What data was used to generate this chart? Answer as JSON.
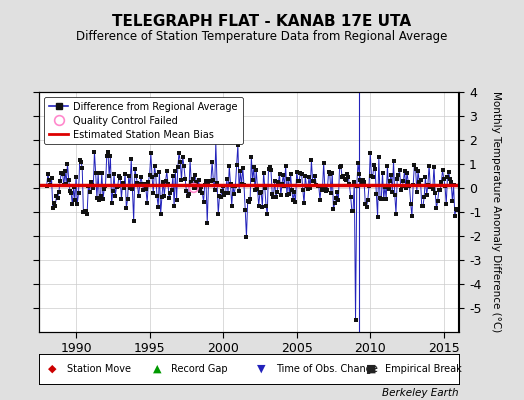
{
  "title": "TELEGRAPH FLAT - KANAB 17E UTA",
  "subtitle": "Difference of Station Temperature Data from Regional Average",
  "ylabel_right": "Monthly Temperature Anomaly Difference (°C)",
  "xlim": [
    1987.5,
    2016.0
  ],
  "ylim": [
    -6,
    4
  ],
  "yticks": [
    -5,
    -4,
    -3,
    -2,
    -1,
    0,
    1,
    2,
    3,
    4
  ],
  "xticks": [
    1990,
    1995,
    2000,
    2005,
    2010,
    2015
  ],
  "bias_level": 0.12,
  "background_color": "#e0e0e0",
  "plot_bg_color": "#ffffff",
  "line_color": "#2222bb",
  "bias_color": "#dd0000",
  "dot_color": "#111111",
  "qc_color": "#ff88cc",
  "watermark": "Berkeley Earth",
  "time_of_obs_change_x": 2009.25,
  "spike_year": 2009.0,
  "spike_val": -5.5,
  "seed": 42
}
